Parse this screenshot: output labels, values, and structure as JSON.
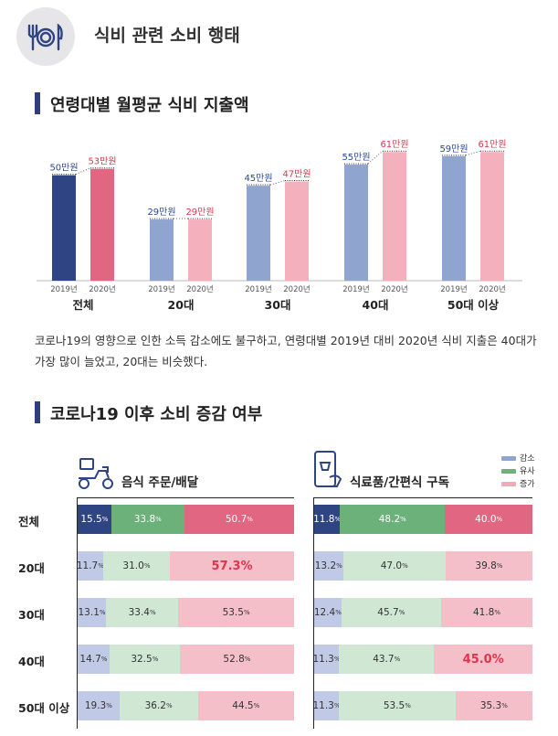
{
  "header": {
    "title": "식비 관련 소비 행태",
    "icon": "utensils-plate-icon"
  },
  "section1": {
    "title": "연령대별 월평균 식비 지출액"
  },
  "section2": {
    "title": "코로나19 이후 소비 증감 여부"
  },
  "description": "코로나19의 영향으로 인한 소득 감소에도 불구하고, 연령대별 2019년 대비 2020년 식비 지출은 40대가 가장 많이 늘었고, 20대는 비슷했다.",
  "colors": {
    "y2019_total": "#2f4483",
    "y2020_total": "#e06682",
    "y2019": "#8fa4cf",
    "y2020": "#f4b0bd",
    "decrease_dark": "#2f4483",
    "same_dark": "#6cb07a",
    "increase_dark": "#e06682",
    "decrease_light": "#c0cae6",
    "same_light": "#cfe7d3",
    "increase_light": "#f5bfca",
    "highlight": "#e0344c",
    "label2019": "#2a4a8f",
    "label2020": "#e0344c"
  },
  "chart_data": [
    {
      "type": "bar",
      "title": "연령대별 월평균 식비 지출액",
      "categories": [
        "전체",
        "20대",
        "30대",
        "40대",
        "50대 이상"
      ],
      "series": [
        {
          "name": "2019년",
          "values": [
            50,
            29,
            45,
            55,
            59
          ]
        },
        {
          "name": "2020년",
          "values": [
            53,
            29,
            47,
            61,
            61
          ]
        }
      ],
      "value_unit": "만원",
      "ylim": [
        0,
        65
      ]
    },
    {
      "type": "bar",
      "stacked": true,
      "percent": true,
      "title": "음식 주문/배달",
      "categories": [
        "전체",
        "20대",
        "30대",
        "40대",
        "50대 이상"
      ],
      "series": [
        {
          "name": "감소",
          "values": [
            15.5,
            11.7,
            13.1,
            14.7,
            19.3
          ]
        },
        {
          "name": "유사",
          "values": [
            33.8,
            31.0,
            33.4,
            32.5,
            36.2
          ]
        },
        {
          "name": "증가",
          "values": [
            50.7,
            57.3,
            53.5,
            52.8,
            44.5
          ]
        }
      ],
      "highlight": {
        "category": "20대",
        "series": "증가"
      }
    },
    {
      "type": "bar",
      "stacked": true,
      "percent": true,
      "title": "식료품/간편식 구독",
      "categories": [
        "전체",
        "20대",
        "30대",
        "40대",
        "50대 이상"
      ],
      "series": [
        {
          "name": "감소",
          "values": [
            11.8,
            13.2,
            12.4,
            11.3,
            11.3
          ]
        },
        {
          "name": "유사",
          "values": [
            48.2,
            47.0,
            45.7,
            43.7,
            53.5
          ]
        },
        {
          "name": "증가",
          "values": [
            40.0,
            39.8,
            41.8,
            45.0,
            35.3
          ]
        }
      ],
      "highlight": {
        "category": "40대",
        "series": "증가"
      }
    }
  ],
  "legend": [
    "감소",
    "유사",
    "증가"
  ],
  "stack_icons": [
    "delivery-scooter-icon",
    "phone-groceries-icon"
  ]
}
